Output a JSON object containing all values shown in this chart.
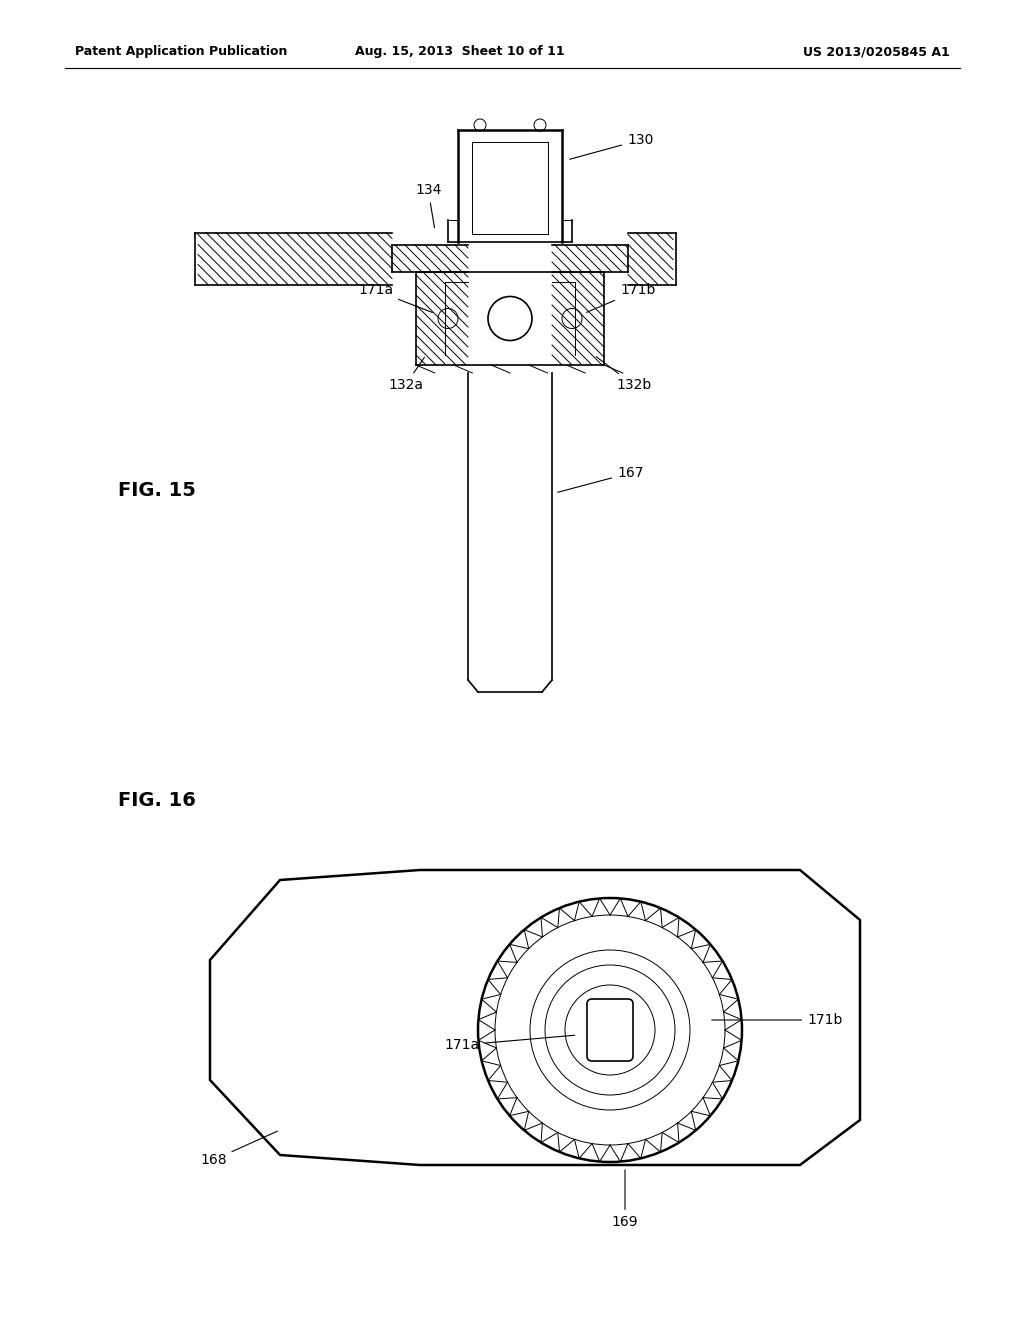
{
  "bg_color": "#ffffff",
  "header_left": "Patent Application Publication",
  "header_mid": "Aug. 15, 2013  Sheet 10 of 11",
  "header_right": "US 2013/0205845 A1",
  "fig15_label": "FIG. 15",
  "fig16_label": "FIG. 16"
}
